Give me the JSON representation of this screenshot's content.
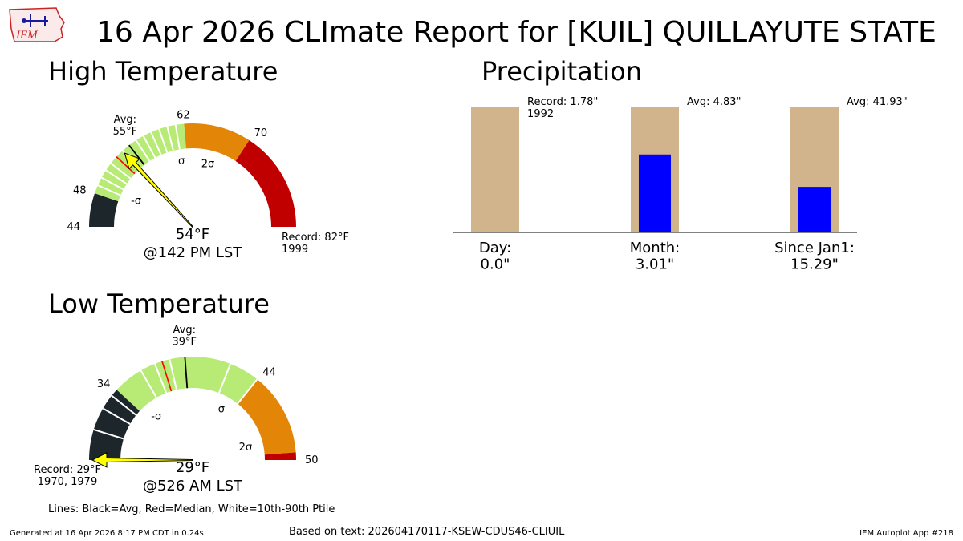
{
  "logo": {
    "text": "IEM",
    "color": "#cc2222"
  },
  "title": "16 Apr 2026 CLImate Report for [KUIL] QUILLAYUTE STATE",
  "chart_data": [
    {
      "type": "gauge",
      "title": "High Temperature",
      "range": [
        44,
        82
      ],
      "segments": [
        {
          "from": 44,
          "to": 48,
          "color": "#1c262b"
        },
        {
          "from": 48,
          "to": 62,
          "color": "#b7eb76"
        },
        {
          "from": 62,
          "to": 70,
          "color": "#e38607"
        },
        {
          "from": 70,
          "to": 82,
          "color": "#c00000"
        }
      ],
      "avg": 55,
      "avg_label": "Avg:\n55°F",
      "median": 53,
      "percentile_lines": [
        49,
        50,
        51,
        52,
        54,
        56,
        57,
        58,
        59,
        60,
        61
      ],
      "observed": 54,
      "observed_label": "54°F",
      "time_label": "@142 PM LST",
      "ticks": [
        {
          "value": 44,
          "label": "44"
        },
        {
          "value": 48,
          "label": "48"
        },
        {
          "value": 62,
          "label": "62"
        },
        {
          "value": 70,
          "label": "70"
        }
      ],
      "sigma_labels": [
        {
          "value": 49,
          "label": "-σ"
        },
        {
          "value": 61,
          "label": "σ"
        },
        {
          "value": 67,
          "label": "2σ"
        }
      ],
      "record_label": "Record: 82°F\n1999"
    },
    {
      "type": "gauge",
      "title": "Low Temperature",
      "range": [
        29,
        50
      ],
      "segments": [
        {
          "from": 29,
          "to": 34,
          "color": "#1c262b"
        },
        {
          "from": 34,
          "to": 44,
          "color": "#b7eb76"
        },
        {
          "from": 44,
          "to": 49.5,
          "color": "#e38607"
        },
        {
          "from": 49.5,
          "to": 50,
          "color": "#c00000"
        }
      ],
      "avg": 39,
      "avg_label": "Avg:\n39°F",
      "median": 37.5,
      "percentile_lines": [
        31,
        32.5,
        33.5,
        36,
        37,
        38,
        42,
        44
      ],
      "observed": 29,
      "observed_label": "29°F",
      "time_label": "@526 AM LST",
      "ticks": [
        {
          "value": 34,
          "label": "34"
        },
        {
          "value": 44,
          "label": "44"
        },
        {
          "value": 50,
          "label": "50"
        }
      ],
      "sigma_labels": [
        {
          "value": 34.5,
          "label": "-σ"
        },
        {
          "value": 43.2,
          "label": "σ"
        },
        {
          "value": 48.5,
          "label": "2σ"
        }
      ],
      "record_label": "Record: 29°F\n1970, 1979"
    },
    {
      "type": "bar",
      "title": "Precipitation",
      "ylim": [
        0,
        1
      ],
      "categories": [
        "Day:\n0.0\"",
        "Month:\n3.01\"",
        "Since Jan1:\n15.29\""
      ],
      "series": [
        {
          "name": "reference",
          "color": "#d2b48c",
          "values": [
            1.0,
            1.0,
            1.0
          ]
        },
        {
          "name": "observed",
          "color": "#0000ff",
          "values": [
            0.0,
            0.6232,
            0.3646
          ]
        }
      ],
      "annotations": [
        "Record: 1.78\"\n1992",
        "Avg: 4.83\"",
        "Avg: 41.93\""
      ]
    }
  ],
  "footer": {
    "lines_note": "Lines: Black=Avg, Red=Median, White=10th-90th Ptile",
    "generated": "Generated at 16 Apr 2026 8:17 PM CDT in 0.24s",
    "source": "Based on text: 202604170117-KSEW-CDUS46-CLIUIL",
    "app": "IEM Autoplot App #218"
  }
}
